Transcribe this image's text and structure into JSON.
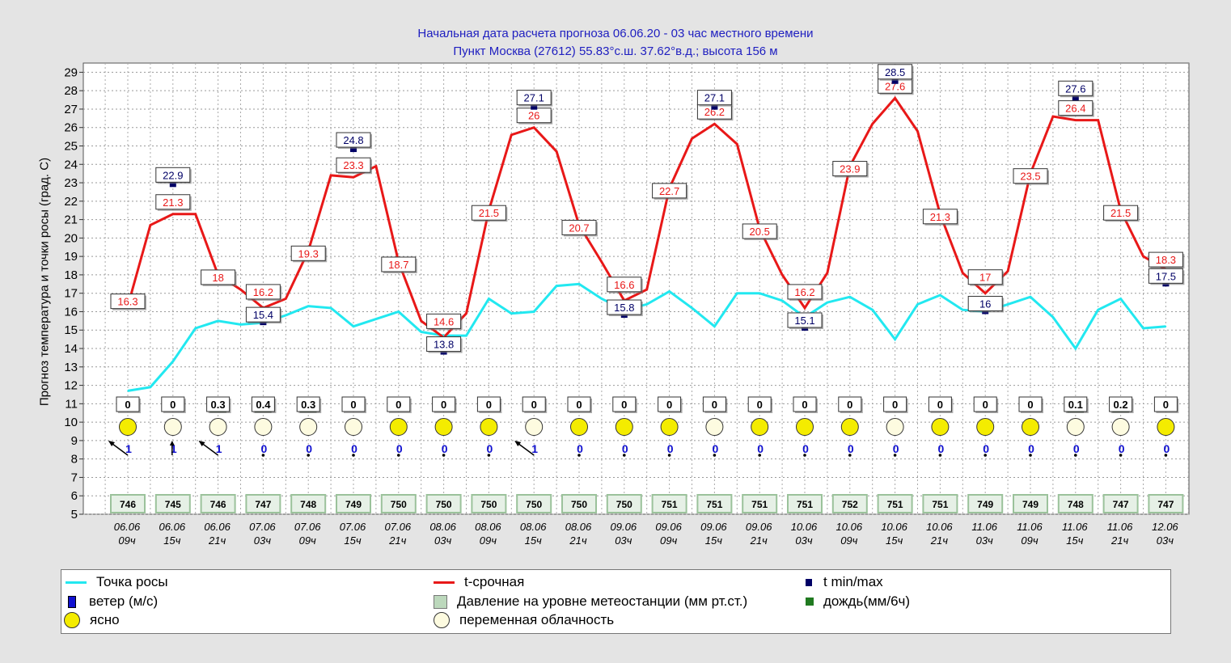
{
  "header": {
    "line1": "Начальная дата расчета прогноза 06.06.20  -  03 час местного времени",
    "line2": "Пункт  Москва (27612)    55.83°с.ш.   37.62°в.д.; высота 156 м"
  },
  "colors": {
    "dew": "#22e8f0",
    "temp": "#e81818",
    "tmax_marker": "#000066",
    "rain": "#207a20",
    "sun": "#f4ec00",
    "cloud": "#fdfbe0",
    "pressure_fill": "#e6f0e6",
    "pressure_border": "#9bc29b"
  },
  "chart_data": {
    "type": "line",
    "ylabel": "Прогноз температура и точки росы (град. С)",
    "ylim": [
      5,
      29.5
    ],
    "yticks": [
      5,
      6,
      7,
      8,
      9,
      10,
      11,
      12,
      13,
      14,
      15,
      16,
      17,
      18,
      19,
      20,
      21,
      22,
      23,
      24,
      25,
      26,
      27,
      28,
      29
    ],
    "grid": true,
    "legend_position": "bottom",
    "x_labels": [
      {
        "date": "06.06",
        "hour": "09ч"
      },
      {
        "date": "06.06",
        "hour": "15ч"
      },
      {
        "date": "06.06",
        "hour": "21ч"
      },
      {
        "date": "07.06",
        "hour": "03ч"
      },
      {
        "date": "07.06",
        "hour": "09ч"
      },
      {
        "date": "07.06",
        "hour": "15ч"
      },
      {
        "date": "07.06",
        "hour": "21ч"
      },
      {
        "date": "08.06",
        "hour": "03ч"
      },
      {
        "date": "08.06",
        "hour": "09ч"
      },
      {
        "date": "08.06",
        "hour": "15ч"
      },
      {
        "date": "08.06",
        "hour": "21ч"
      },
      {
        "date": "09.06",
        "hour": "03ч"
      },
      {
        "date": "09.06",
        "hour": "09ч"
      },
      {
        "date": "09.06",
        "hour": "15ч"
      },
      {
        "date": "09.06",
        "hour": "21ч"
      },
      {
        "date": "10.06",
        "hour": "03ч"
      },
      {
        "date": "10.06",
        "hour": "09ч"
      },
      {
        "date": "10.06",
        "hour": "15ч"
      },
      {
        "date": "10.06",
        "hour": "21ч"
      },
      {
        "date": "11.06",
        "hour": "03ч"
      },
      {
        "date": "11.06",
        "hour": "09ч"
      },
      {
        "date": "11.06",
        "hour": "15ч"
      },
      {
        "date": "11.06",
        "hour": "21ч"
      },
      {
        "date": "12.06",
        "hour": "03ч"
      }
    ],
    "series": [
      {
        "name": "t-срочная",
        "values": [
          16.3,
          20.7,
          21.3,
          21.3,
          18.0,
          17.2,
          16.2,
          16.7,
          19.3,
          23.4,
          23.3,
          23.9,
          18.7,
          15.5,
          14.6,
          15.9,
          21.5,
          25.6,
          26.0,
          24.7,
          20.7,
          18.7,
          16.6,
          17.2,
          22.7,
          25.4,
          26.2,
          25.1,
          20.5,
          18.0,
          16.2,
          18.1,
          23.9,
          26.2,
          27.6,
          25.8,
          21.3,
          18.1,
          17.0,
          18.2,
          23.5,
          26.6,
          26.4,
          26.4,
          21.5,
          19.0,
          18.3
        ]
      },
      {
        "name": "Точка росы",
        "values": [
          11.7,
          11.9,
          13.3,
          15.1,
          15.5,
          15.3,
          15.4,
          15.8,
          16.3,
          16.2,
          15.2,
          15.6,
          16.0,
          14.9,
          14.7,
          14.7,
          16.7,
          15.9,
          16.0,
          17.4,
          17.5,
          16.7,
          16.1,
          16.4,
          17.1,
          16.2,
          15.2,
          17.0,
          17.0,
          16.6,
          15.7,
          16.5,
          16.8,
          16.1,
          14.5,
          16.4,
          16.9,
          16.1,
          16.0,
          16.4,
          16.8,
          15.7,
          14.0,
          16.1,
          16.7,
          15.1,
          15.2
        ]
      }
    ],
    "temp_labels": [
      {
        "i": 0,
        "v": "16.3"
      },
      {
        "i": 2,
        "v": "21.3"
      },
      {
        "i": 4,
        "v": "18"
      },
      {
        "i": 6,
        "v": "16.2"
      },
      {
        "i": 8,
        "v": "19.3"
      },
      {
        "i": 10,
        "v": "23.3"
      },
      {
        "i": 12,
        "v": "18.7"
      },
      {
        "i": 14,
        "v": "14.6"
      },
      {
        "i": 16,
        "v": "21.5"
      },
      {
        "i": 18,
        "v": "26"
      },
      {
        "i": 20,
        "v": "20.7"
      },
      {
        "i": 22,
        "v": "16.6"
      },
      {
        "i": 24,
        "v": "22.7"
      },
      {
        "i": 26,
        "v": "26.2"
      },
      {
        "i": 28,
        "v": "20.5"
      },
      {
        "i": 30,
        "v": "16.2"
      },
      {
        "i": 32,
        "v": "23.9"
      },
      {
        "i": 34,
        "v": "27.6"
      },
      {
        "i": 36,
        "v": "21.3"
      },
      {
        "i": 38,
        "v": "17"
      },
      {
        "i": 40,
        "v": "23.5"
      },
      {
        "i": 42,
        "v": "26.4"
      },
      {
        "i": 44,
        "v": "21.5"
      },
      {
        "i": 46,
        "v": "18.3"
      }
    ],
    "tminmax": [
      {
        "i": 2,
        "v": "22.9"
      },
      {
        "i": 6,
        "v": "15.4"
      },
      {
        "i": 10,
        "v": "24.8"
      },
      {
        "i": 14,
        "v": "13.8"
      },
      {
        "i": 18,
        "v": "27.1"
      },
      {
        "i": 22,
        "v": "15.8"
      },
      {
        "i": 26,
        "v": "27.1"
      },
      {
        "i": 30,
        "v": "15.1"
      },
      {
        "i": 34,
        "v": "28.5"
      },
      {
        "i": 38,
        "v": "16"
      },
      {
        "i": 42,
        "v": "27.6"
      },
      {
        "i": 46,
        "v": "17.5"
      }
    ],
    "rain": [
      "0",
      "0",
      "0.3",
      "0.4",
      "0.3",
      "0",
      "0",
      "0",
      "0",
      "0",
      "0",
      "0",
      "0",
      "0",
      "0",
      "0",
      "0",
      "0",
      "0",
      "0",
      "0",
      "0.1",
      "0.2",
      "0"
    ],
    "sky": [
      "sun",
      "cloud",
      "cloud",
      "cloud",
      "cloud",
      "cloud",
      "sun",
      "sun",
      "sun",
      "cloud",
      "sun",
      "sun",
      "sun",
      "cloud",
      "sun",
      "sun",
      "sun",
      "cloud",
      "sun",
      "sun",
      "sun",
      "cloud",
      "cloud",
      "sun"
    ],
    "wind": [
      {
        "speed": "1",
        "arrow": "nw"
      },
      {
        "speed": "1",
        "arrow": "n"
      },
      {
        "speed": "1",
        "arrow": "nw"
      },
      {
        "speed": "0",
        "arrow": "calm"
      },
      {
        "speed": "0",
        "arrow": "calm"
      },
      {
        "speed": "0",
        "arrow": "calm"
      },
      {
        "speed": "0",
        "arrow": "calm"
      },
      {
        "speed": "0",
        "arrow": "calm"
      },
      {
        "speed": "0",
        "arrow": "calm"
      },
      {
        "speed": "1",
        "arrow": "nw"
      },
      {
        "speed": "0",
        "arrow": "calm"
      },
      {
        "speed": "0",
        "arrow": "calm"
      },
      {
        "speed": "0",
        "arrow": "calm"
      },
      {
        "speed": "0",
        "arrow": "calm"
      },
      {
        "speed": "0",
        "arrow": "calm"
      },
      {
        "speed": "0",
        "arrow": "calm"
      },
      {
        "speed": "0",
        "arrow": "calm"
      },
      {
        "speed": "0",
        "arrow": "calm"
      },
      {
        "speed": "0",
        "arrow": "calm"
      },
      {
        "speed": "0",
        "arrow": "calm"
      },
      {
        "speed": "0",
        "arrow": "calm"
      },
      {
        "speed": "0",
        "arrow": "calm"
      },
      {
        "speed": "0",
        "arrow": "calm"
      },
      {
        "speed": "0",
        "arrow": "calm"
      }
    ],
    "pressure": [
      "746",
      "745",
      "746",
      "747",
      "748",
      "749",
      "750",
      "750",
      "750",
      "750",
      "750",
      "750",
      "751",
      "751",
      "751",
      "751",
      "752",
      "751",
      "751",
      "749",
      "749",
      "748",
      "747",
      "747"
    ]
  },
  "legend": {
    "dew": "Точка росы",
    "temp": "t-срочная",
    "tminmax": "t min/max",
    "wind": "ветер (м/с)",
    "pressure": "Давление на уровне метеостанции (мм рт.ст.)",
    "rain": "дождь(мм/6ч)",
    "clear": "ясно",
    "cloudy": "переменная облачность"
  }
}
